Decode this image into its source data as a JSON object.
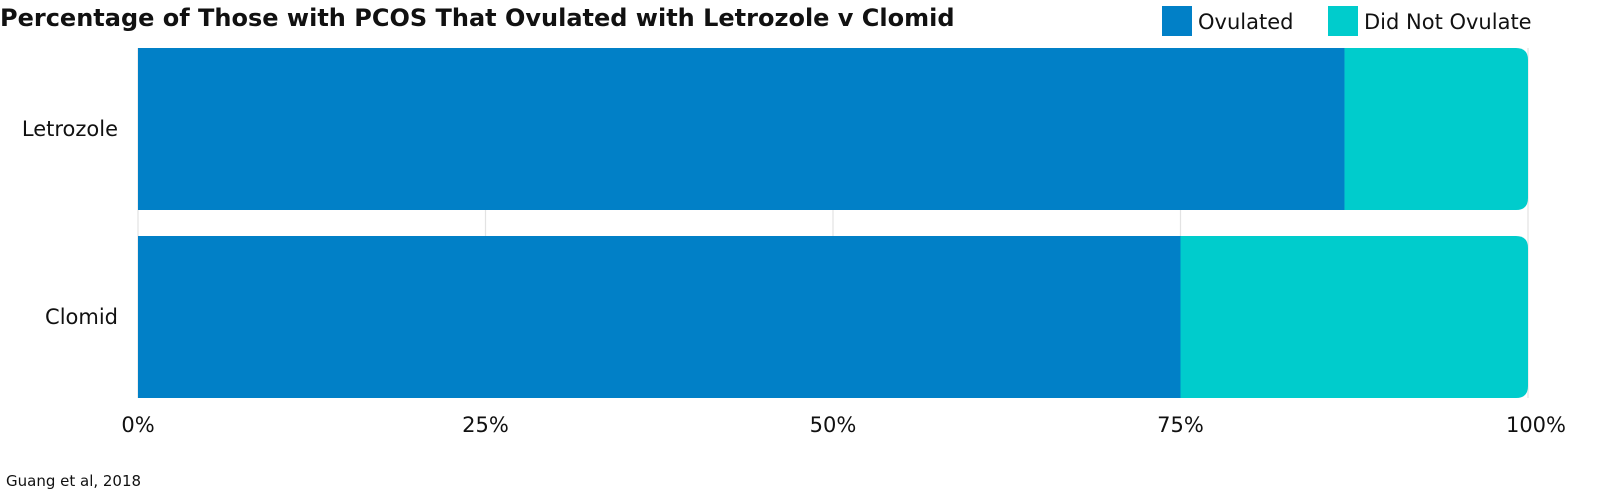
{
  "chart_data": {
    "type": "bar",
    "orientation": "horizontal",
    "stacked": true,
    "title": "Percentage of Those with PCOS That Ovulated with Letrozole v Clomid",
    "categories": [
      "Letrozole",
      "Clomid"
    ],
    "series": [
      {
        "name": "Ovulated",
        "color": "#0180c7",
        "values": [
          86.8,
          75
        ]
      },
      {
        "name": "Did Not Ovulate",
        "color": "#00cccc",
        "values": [
          13.2,
          25
        ]
      }
    ],
    "xlim": [
      0,
      100
    ],
    "x_ticks": [
      0,
      25,
      50,
      75,
      100
    ],
    "x_tick_labels": [
      "0%",
      "25%",
      "50%",
      "75%",
      "100%"
    ],
    "grid": "vertical",
    "legend_position": "top-right",
    "source": "Guang et al, 2018"
  }
}
